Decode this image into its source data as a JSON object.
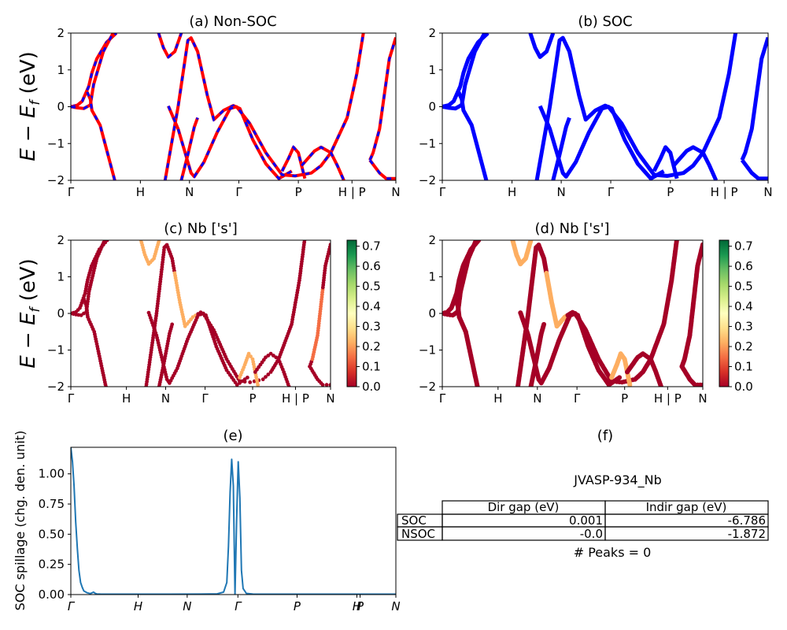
{
  "chart_data": [
    {
      "id": "a",
      "type": "line",
      "title": "(a) Non-SOC",
      "ylabel": "E − E_f (eV)",
      "ylim": [
        -2,
        2
      ],
      "yticks": [
        "2",
        "1",
        "0",
        "−1",
        "−2"
      ],
      "xticks": [
        "Γ",
        "H",
        "N",
        "Γ",
        "P",
        "H | P",
        "N"
      ],
      "series": [
        {
          "color": "#ff0000",
          "style": "solid",
          "bands": [
            [
              [
                0,
                0
              ],
              [
                0.02,
                0.04
              ],
              [
                0.035,
                0.15
              ],
              [
                0.055,
                0.55
              ],
              [
                0.065,
                0.92
              ],
              [
                0.08,
                1.3
              ],
              [
                0.11,
                1.75
              ],
              [
                0.14,
                2
              ]
            ],
            [
              [
                0,
                0
              ],
              [
                0.02,
                -0.03
              ],
              [
                0.04,
                -0.05
              ],
              [
                0.06,
                0.05
              ],
              [
                0.07,
                0.6
              ],
              [
                0.08,
                0.9
              ],
              [
                0.1,
                1.5
              ],
              [
                0.13,
                2
              ]
            ],
            [
              [
                0.05,
                0.4
              ],
              [
                0.06,
                0.2
              ],
              [
                0.065,
                -0.1
              ],
              [
                0.09,
                -0.5
              ],
              [
                0.12,
                -1.5
              ],
              [
                0.135,
                -2
              ]
            ],
            [
              [
                0.27,
                2
              ],
              [
                0.285,
                1.6
              ],
              [
                0.3,
                1.35
              ],
              [
                0.32,
                1.5
              ],
              [
                0.34,
                2
              ]
            ],
            [
              [
                0.29,
                -2
              ],
              [
                0.31,
                -1
              ],
              [
                0.33,
                0
              ],
              [
                0.36,
                1.8
              ],
              [
                0.37,
                1.87
              ],
              [
                0.39,
                1.5
              ],
              [
                0.42,
                0.3
              ],
              [
                0.44,
                -0.35
              ],
              [
                0.47,
                -0.1
              ],
              [
                0.5,
                0.03
              ],
              [
                0.52,
                -0.05
              ],
              [
                0.56,
                -0.9
              ],
              [
                0.6,
                -1.55
              ],
              [
                0.64,
                -1.95
              ],
              [
                0.68,
                -1.75
              ]
            ],
            [
              [
                0.3,
                0.02
              ],
              [
                0.33,
                -0.6
              ],
              [
                0.37,
                -1.8
              ],
              [
                0.38,
                -1.9
              ],
              [
                0.41,
                -1.5
              ],
              [
                0.45,
                -0.7
              ],
              [
                0.49,
                -0.05
              ],
              [
                0.51,
                0
              ],
              [
                0.55,
                -0.45
              ],
              [
                0.6,
                -1.25
              ],
              [
                0.65,
                -1.85
              ],
              [
                0.69,
                -1.88
              ],
              [
                0.74,
                -1.8
              ],
              [
                0.77,
                -1.6
              ],
              [
                0.8,
                -1.25
              ],
              [
                0.85,
                -0.3
              ],
              [
                0.88,
                0.9
              ],
              [
                0.9,
                2
              ]
            ],
            [
              [
                0.34,
                -2
              ],
              [
                0.36,
                -1.3
              ],
              [
                0.38,
                -0.55
              ],
              [
                0.39,
                -0.3
              ]
            ],
            [
              [
                0.65,
                -1.75
              ],
              [
                0.67,
                -1.4
              ],
              [
                0.685,
                -1.1
              ],
              [
                0.7,
                -1.25
              ],
              [
                0.71,
                -1.6
              ],
              [
                0.72,
                -1.95
              ]
            ],
            [
              [
                0.71,
                -1.6
              ],
              [
                0.75,
                -1.2
              ],
              [
                0.77,
                -1.1
              ],
              [
                0.8,
                -1.25
              ],
              [
                0.82,
                -1.6
              ],
              [
                0.84,
                -2
              ]
            ],
            [
              [
                0.92,
                -1.45
              ],
              [
                0.93,
                -1.25
              ],
              [
                0.95,
                -0.6
              ],
              [
                0.98,
                1.3
              ],
              [
                1.0,
                1.88
              ]
            ],
            [
              [
                0.92,
                -1.45
              ],
              [
                0.95,
                -1.8
              ],
              [
                0.97,
                -1.95
              ],
              [
                1.0,
                -1.95
              ]
            ]
          ]
        }
      ]
    },
    {
      "id": "b",
      "type": "line",
      "title": "(b) SOC",
      "ylim": [
        -2,
        2
      ],
      "yticks": [
        "2",
        "1",
        "0",
        "−1",
        "−2"
      ],
      "xticks": [
        "Γ",
        "H",
        "N",
        "Γ",
        "P",
        "H | P",
        "N"
      ],
      "series": [
        {
          "color": "#0000ff",
          "style": "solid",
          "bands": [
            [
              [
                0,
                0
              ],
              [
                0.02,
                0.04
              ],
              [
                0.035,
                0.15
              ],
              [
                0.055,
                0.55
              ],
              [
                0.065,
                0.92
              ],
              [
                0.08,
                1.3
              ],
              [
                0.11,
                1.75
              ],
              [
                0.14,
                2
              ]
            ],
            [
              [
                0,
                0
              ],
              [
                0.02,
                -0.03
              ],
              [
                0.04,
                -0.05
              ],
              [
                0.06,
                0.05
              ],
              [
                0.07,
                0.6
              ],
              [
                0.08,
                0.9
              ],
              [
                0.1,
                1.5
              ],
              [
                0.13,
                2
              ]
            ],
            [
              [
                0.05,
                0.4
              ],
              [
                0.06,
                0.2
              ],
              [
                0.065,
                -0.1
              ],
              [
                0.09,
                -0.5
              ],
              [
                0.12,
                -1.5
              ],
              [
                0.135,
                -2
              ]
            ],
            [
              [
                0.27,
                2
              ],
              [
                0.285,
                1.6
              ],
              [
                0.3,
                1.35
              ],
              [
                0.32,
                1.5
              ],
              [
                0.34,
                2
              ]
            ],
            [
              [
                0.29,
                -2
              ],
              [
                0.31,
                -1
              ],
              [
                0.33,
                0
              ],
              [
                0.36,
                1.8
              ],
              [
                0.37,
                1.87
              ],
              [
                0.39,
                1.5
              ],
              [
                0.42,
                0.3
              ],
              [
                0.44,
                -0.35
              ],
              [
                0.47,
                -0.1
              ],
              [
                0.5,
                0.03
              ],
              [
                0.52,
                -0.05
              ],
              [
                0.56,
                -0.9
              ],
              [
                0.6,
                -1.55
              ],
              [
                0.64,
                -1.95
              ],
              [
                0.68,
                -1.75
              ]
            ],
            [
              [
                0.3,
                0.02
              ],
              [
                0.33,
                -0.6
              ],
              [
                0.37,
                -1.8
              ],
              [
                0.38,
                -1.9
              ],
              [
                0.41,
                -1.5
              ],
              [
                0.45,
                -0.7
              ],
              [
                0.49,
                -0.05
              ],
              [
                0.51,
                0
              ],
              [
                0.55,
                -0.45
              ],
              [
                0.6,
                -1.25
              ],
              [
                0.65,
                -1.85
              ],
              [
                0.69,
                -1.88
              ],
              [
                0.74,
                -1.8
              ],
              [
                0.77,
                -1.6
              ],
              [
                0.8,
                -1.25
              ],
              [
                0.85,
                -0.3
              ],
              [
                0.88,
                0.9
              ],
              [
                0.9,
                2
              ]
            ],
            [
              [
                0.34,
                -2
              ],
              [
                0.36,
                -1.3
              ],
              [
                0.38,
                -0.55
              ],
              [
                0.39,
                -0.3
              ]
            ],
            [
              [
                0.65,
                -1.75
              ],
              [
                0.67,
                -1.4
              ],
              [
                0.685,
                -1.1
              ],
              [
                0.7,
                -1.25
              ],
              [
                0.71,
                -1.6
              ],
              [
                0.72,
                -1.95
              ]
            ],
            [
              [
                0.71,
                -1.6
              ],
              [
                0.75,
                -1.2
              ],
              [
                0.77,
                -1.1
              ],
              [
                0.8,
                -1.25
              ],
              [
                0.82,
                -1.6
              ],
              [
                0.84,
                -2
              ]
            ],
            [
              [
                0.92,
                -1.45
              ],
              [
                0.93,
                -1.25
              ],
              [
                0.95,
                -0.6
              ],
              [
                0.98,
                1.3
              ],
              [
                1.0,
                1.88
              ]
            ],
            [
              [
                0.92,
                -1.45
              ],
              [
                0.95,
                -1.8
              ],
              [
                0.97,
                -1.95
              ],
              [
                1.0,
                -1.95
              ]
            ]
          ]
        }
      ]
    },
    {
      "id": "c",
      "type": "scatter",
      "title": "(c)  Nb ['s']",
      "ylabel": "E − E_f (eV)",
      "ylim": [
        -2,
        2
      ],
      "yticks": [
        "2",
        "1",
        "0",
        "−1",
        "−2"
      ],
      "xticks": [
        "Γ",
        "H",
        "N",
        "Γ",
        "P",
        "H | P",
        "N"
      ],
      "colorbar": {
        "min": 0.0,
        "max": 0.73,
        "ticks": [
          "0.7",
          "0.6",
          "0.5",
          "0.4",
          "0.3",
          "0.2",
          "0.1",
          "0.0"
        ],
        "colors": [
          "#a50026",
          "#d73027",
          "#f46d43",
          "#fdae61",
          "#fee08b",
          "#ffffbf",
          "#d9ef8b",
          "#a6d96a",
          "#66bd63",
          "#1a9850",
          "#006837"
        ]
      },
      "highlights": [
        {
          "band": 3,
          "range": [
            0.25,
            0.75
          ],
          "weight": 0.22
        },
        {
          "band": 4,
          "range": [
            0.4,
            0.48
          ],
          "weight": 0.25
        },
        {
          "band": 7,
          "range": [
            0.65,
            0.72
          ],
          "weight": 0.2
        },
        {
          "band": 9,
          "range": [
            0.93,
            0.97
          ],
          "weight": 0.18
        }
      ]
    },
    {
      "id": "d",
      "type": "scatter",
      "title": "(d) Nb ['s']",
      "ylim": [
        -2,
        2
      ],
      "yticks": [
        "2",
        "1",
        "0",
        "−1",
        "−2"
      ],
      "xticks": [
        "Γ",
        "H",
        "N",
        "Γ",
        "P",
        "H | P",
        "N"
      ],
      "colorbar": {
        "min": 0.0,
        "max": 0.73,
        "ticks": [
          "0.7",
          "0.6",
          "0.5",
          "0.4",
          "0.3",
          "0.2",
          "0.1",
          "0.0"
        ],
        "colors": [
          "#a50026",
          "#d73027",
          "#f46d43",
          "#fdae61",
          "#fee08b",
          "#ffffbf",
          "#d9ef8b",
          "#a6d96a",
          "#66bd63",
          "#1a9850",
          "#006837"
        ]
      },
      "highlights": [
        {
          "band": 3,
          "range": [
            0.25,
            0.75
          ],
          "weight": 0.22
        },
        {
          "band": 4,
          "range": [
            0.4,
            0.48
          ],
          "weight": 0.25
        },
        {
          "band": 7,
          "range": [
            0.65,
            0.72
          ],
          "weight": 0.2
        }
      ]
    },
    {
      "id": "e",
      "type": "line",
      "title": "(e)",
      "ylabel": "SOC spillage (chg. den. unit)",
      "ylim": [
        0,
        1.22
      ],
      "yticks": [
        "1.00",
        "0.75",
        "0.50",
        "0.25",
        "0.00"
      ],
      "ytick_values": [
        1.0,
        0.75,
        0.5,
        0.25,
        0.0
      ],
      "xticks": [
        "Γ",
        "H",
        "N",
        "Γ",
        "P",
        "H",
        "P",
        "N"
      ],
      "series": [
        {
          "color": "#1f77b4",
          "x": [
            0,
            0.005,
            0.01,
            0.015,
            0.02,
            0.025,
            0.03,
            0.035,
            0.04,
            0.05,
            0.06,
            0.07,
            0.075,
            0.08,
            0.09,
            0.1,
            0.2,
            0.3,
            0.4,
            0.45,
            0.47,
            0.48,
            0.485,
            0.49,
            0.495,
            0.5,
            0.505,
            0.51,
            0.515,
            0.52,
            0.525,
            0.53,
            0.54,
            0.56,
            0.6,
            0.8,
            1.0
          ],
          "y": [
            1.22,
            1.1,
            0.9,
            0.6,
            0.38,
            0.2,
            0.1,
            0.06,
            0.03,
            0.015,
            0.008,
            0.02,
            0.01,
            0.005,
            0.004,
            0.003,
            0.003,
            0.003,
            0.004,
            0.006,
            0.02,
            0.1,
            0.4,
            0.85,
            1.12,
            0.9,
            0.0,
            0.6,
            1.1,
            0.8,
            0.2,
            0.05,
            0.01,
            0.004,
            0.003,
            0.003,
            0.003
          ]
        }
      ]
    }
  ],
  "info": {
    "title": "(f)",
    "material": "JVASP-934_Nb",
    "table": {
      "headers": [
        "Dir gap (eV)",
        "Indir gap (eV)"
      ],
      "rows": [
        {
          "label": "SOC",
          "dir": "0.001",
          "indir": "-6.786"
        },
        {
          "label": "NSOC",
          "dir": "-0.0",
          "indir": "-1.872"
        }
      ]
    },
    "peaks": "# Peaks = 0"
  }
}
